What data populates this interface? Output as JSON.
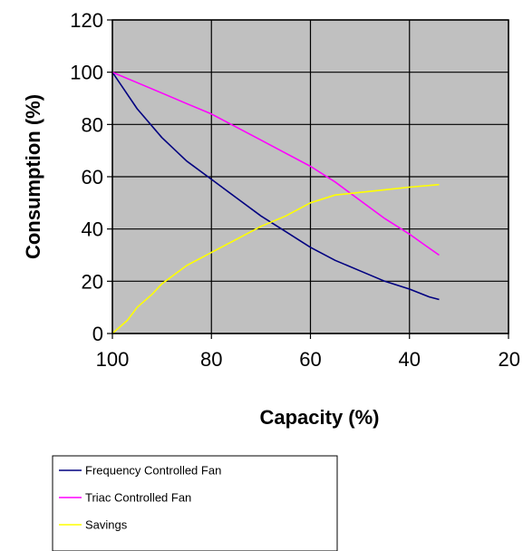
{
  "chart_data": {
    "type": "line",
    "xlabel": "Capacity (%)",
    "ylabel": "Consumption (%)",
    "xlim": [
      100,
      20
    ],
    "ylim": [
      0,
      120
    ],
    "x_ticks": [
      "100",
      "80",
      "60",
      "40",
      "20"
    ],
    "y_ticks": [
      "0",
      "20",
      "40",
      "60",
      "80",
      "100",
      "120"
    ],
    "grid": true,
    "plot_background": "#c0c0c0",
    "legend_position": "bottom-left",
    "series": [
      {
        "name": "Frequency Controlled Fan",
        "color": "#000080",
        "points": [
          [
            100,
            100
          ],
          [
            95,
            86
          ],
          [
            90,
            75
          ],
          [
            85,
            66
          ],
          [
            80,
            59
          ],
          [
            75,
            52
          ],
          [
            70,
            45
          ],
          [
            65,
            39
          ],
          [
            60,
            33
          ],
          [
            55,
            28
          ],
          [
            50,
            24
          ],
          [
            45,
            20
          ],
          [
            40,
            17
          ],
          [
            36,
            14
          ],
          [
            34,
            13
          ]
        ]
      },
      {
        "name": "Triac Controlled Fan",
        "color": "#ff00ff",
        "points": [
          [
            100,
            100
          ],
          [
            95,
            96
          ],
          [
            90,
            92
          ],
          [
            85,
            88
          ],
          [
            80,
            84
          ],
          [
            75,
            79
          ],
          [
            70,
            74
          ],
          [
            65,
            69
          ],
          [
            60,
            64
          ],
          [
            55,
            58
          ],
          [
            50,
            51
          ],
          [
            45,
            44
          ],
          [
            40,
            38
          ],
          [
            37,
            34
          ],
          [
            34,
            30
          ]
        ]
      },
      {
        "name": "Savings",
        "color": "#ffff00",
        "points": [
          [
            100,
            0
          ],
          [
            97,
            5
          ],
          [
            95,
            10
          ],
          [
            92,
            15
          ],
          [
            90,
            19
          ],
          [
            85,
            26
          ],
          [
            80,
            31
          ],
          [
            75,
            36
          ],
          [
            70,
            41
          ],
          [
            65,
            45
          ],
          [
            60,
            50
          ],
          [
            55,
            53
          ],
          [
            50,
            54
          ],
          [
            45,
            55
          ],
          [
            40,
            56
          ],
          [
            34,
            57
          ]
        ]
      }
    ]
  }
}
